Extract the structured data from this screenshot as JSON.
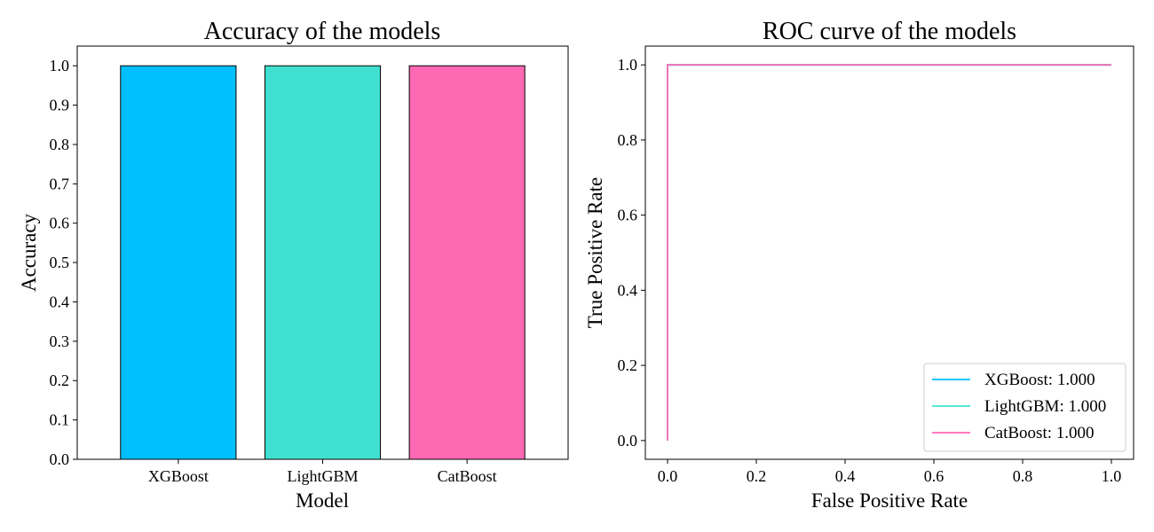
{
  "chart_data": [
    {
      "type": "bar",
      "title": "Accuracy of the models",
      "xlabel": "Model",
      "ylabel": "Accuracy",
      "categories": [
        "XGBoost",
        "LightGBM",
        "CatBoost"
      ],
      "values": [
        1.0,
        1.0,
        1.0
      ],
      "colors": [
        "#00bfff",
        "#40e0d0",
        "#ff69b4"
      ],
      "edge_color": "#000000",
      "ylim": [
        0,
        1.05
      ],
      "yticks": [
        "0.0",
        "0.1",
        "0.2",
        "0.3",
        "0.4",
        "0.5",
        "0.6",
        "0.7",
        "0.8",
        "0.9",
        "1.0"
      ],
      "grid": false
    },
    {
      "type": "line",
      "title": "ROC curve of the models",
      "xlabel": "False Positive Rate",
      "ylabel": "True Positive Rate",
      "xlim": [
        -0.05,
        1.05
      ],
      "ylim": [
        -0.05,
        1.05
      ],
      "xticks": [
        "0.0",
        "0.2",
        "0.4",
        "0.6",
        "0.8",
        "1.0"
      ],
      "yticks": [
        "0.0",
        "0.2",
        "0.4",
        "0.6",
        "0.8",
        "1.0"
      ],
      "grid": false,
      "legend_position": "lower-right",
      "series": [
        {
          "name": "XGBoost: 1.000",
          "color": "#00bfff",
          "x": [
            0,
            0,
            1
          ],
          "y": [
            0,
            1,
            1
          ]
        },
        {
          "name": "LightGBM: 1.000",
          "color": "#40e0d0",
          "x": [
            0,
            0,
            1
          ],
          "y": [
            0,
            1,
            1
          ]
        },
        {
          "name": "CatBoost: 1.000",
          "color": "#ff69b4",
          "x": [
            0,
            0,
            1
          ],
          "y": [
            0,
            1,
            1
          ]
        }
      ]
    }
  ]
}
